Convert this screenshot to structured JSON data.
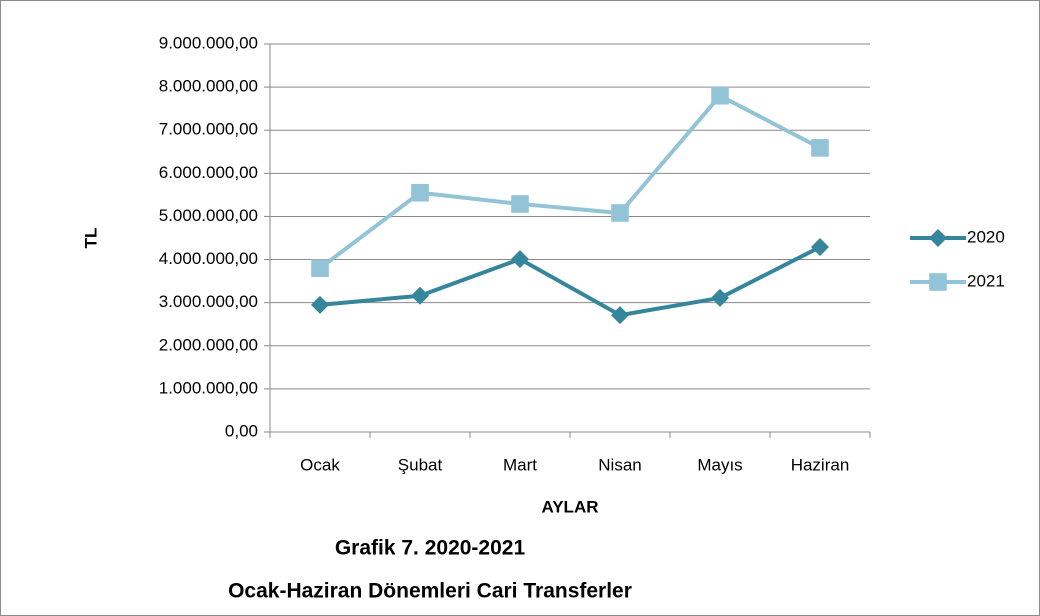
{
  "chart_data": {
    "type": "line",
    "title": "Grafik 7. 2020-2021",
    "subtitle": "Ocak-Haziran Dönemleri Cari Transferler",
    "x_label": "AYLAR",
    "y_label": "TL",
    "categories": [
      "Ocak",
      "Şubat",
      "Mart",
      "Nisan",
      "Mayıs",
      "Haziran"
    ],
    "series": [
      {
        "name": "2020",
        "color": "#35869c",
        "marker": "diamond",
        "values": [
          2950000,
          3160000,
          4010000,
          2710000,
          3110000,
          4290000
        ]
      },
      {
        "name": "2021",
        "color": "#93c3d6",
        "marker": "square",
        "values": [
          3800000,
          5550000,
          5290000,
          5080000,
          7800000,
          6590000
        ]
      }
    ],
    "ylim": [
      0,
      9000000
    ],
    "yticks": [
      {
        "value": 0,
        "label": "0,00"
      },
      {
        "value": 1000000,
        "label": "1.000.000,00"
      },
      {
        "value": 2000000,
        "label": "2.000.000,00"
      },
      {
        "value": 3000000,
        "label": "3.000.000,00"
      },
      {
        "value": 4000000,
        "label": "4.000.000,00"
      },
      {
        "value": 5000000,
        "label": "5.000.000,00"
      },
      {
        "value": 6000000,
        "label": "6.000.000,00"
      },
      {
        "value": 7000000,
        "label": "7.000.000,00"
      },
      {
        "value": 8000000,
        "label": "8.000.000,00"
      },
      {
        "value": 9000000,
        "label": "9.000.000,00"
      }
    ],
    "grid": true,
    "legend": "right"
  }
}
